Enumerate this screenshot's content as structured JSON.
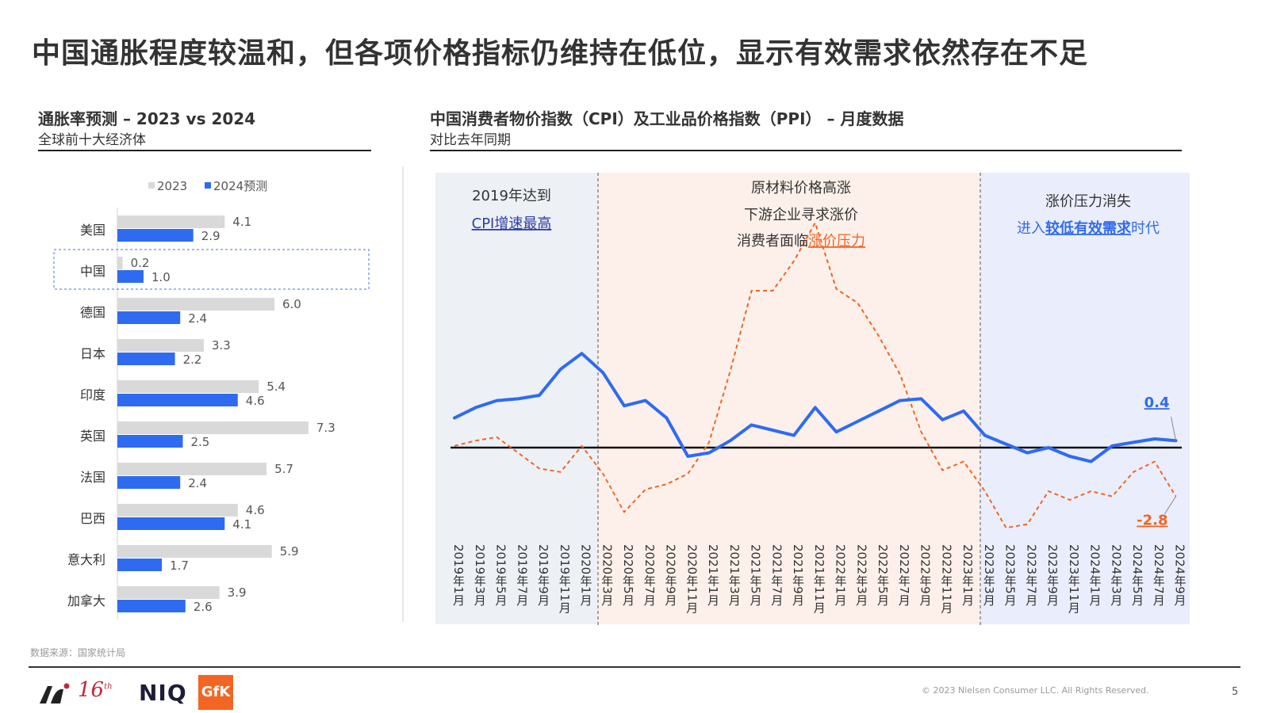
{
  "title": "中国通胀程度较温和，但各项价格指标仍维持在低位，显示有效需求依然存在不足",
  "left": {
    "title": "通胀率预测 – 2023 vs 2024",
    "subtitle": "全球前十大经济体"
  },
  "right": {
    "title": "中国消费者物价指数（CPI）及工业品价格指数（PPI） – 月度数据",
    "subtitle": "对比去年同期"
  },
  "annotations": {
    "a1_line1": "2019年达到",
    "a1_line2": "CPI增速最高",
    "a2_line1": "原材料价格高涨",
    "a2_line2": "下游企业寻求涨价",
    "a2_line3_prefix": "消费者面临",
    "a2_line3_highlight": "涨价压力",
    "a3_line1": "涨价压力消失",
    "a3_line2_prefix": "进入",
    "a3_line2_highlight": "较低有效需求",
    "a3_line2_suffix": "时代",
    "cpi_last_label": "0.4",
    "ppi_last_label": "-2.8"
  },
  "footer": {
    "source": "数据来源：国家统计局",
    "copyright": "© 2023 Nielsen Consumer LLC. All Rights Reserved.",
    "page": "5",
    "logo_16": "16",
    "logo_16_sup": "th",
    "logo_niq": "NIQ",
    "logo_gfk": "GfK"
  },
  "colors": {
    "bar2023": "#d9d9d9",
    "bar2024": "#2f6bf1",
    "cpi": "#2f6bf1",
    "ppi": "#f26522",
    "zone1": "#edf0f5",
    "zone2": "#fdf0ea",
    "zone3": "#eaedfb"
  },
  "chart_data": [
    {
      "type": "bar",
      "orientation": "horizontal",
      "categories": [
        "美国",
        "中国",
        "德国",
        "日本",
        "印度",
        "英国",
        "法国",
        "巴西",
        "意大利",
        "加拿大"
      ],
      "series": [
        {
          "name": "2023",
          "values": [
            4.1,
            0.2,
            6.0,
            3.3,
            5.4,
            7.3,
            5.7,
            4.6,
            5.9,
            3.9
          ]
        },
        {
          "name": "2024预测",
          "values": [
            2.9,
            1.0,
            2.4,
            2.2,
            4.6,
            2.5,
            2.4,
            4.1,
            1.7,
            2.6
          ]
        }
      ],
      "highlight_category": "中国",
      "legend": "top"
    },
    {
      "type": "line",
      "x_labels": [
        "2019年1月",
        "2019年3月",
        "2019年5月",
        "2019年7月",
        "2019年9月",
        "2019年11月",
        "2020年1月",
        "2020年3月",
        "2020年5月",
        "2020年7月",
        "2020年9月",
        "2020年11月",
        "2021年1月",
        "2021年3月",
        "2021年5月",
        "2021年7月",
        "2021年9月",
        "2021年11月",
        "2022年1月",
        "2022年3月",
        "2022年5月",
        "2022年7月",
        "2022年9月",
        "2022年11月",
        "2023年1月",
        "2023年3月",
        "2023年5月",
        "2023年7月",
        "2023年9月",
        "2023年11月",
        "2024年1月",
        "2024年3月",
        "2024年5月",
        "2024年7月",
        "2024年9月"
      ],
      "series": [
        {
          "name": "CPI",
          "values": [
            1.7,
            2.3,
            2.7,
            2.8,
            3.0,
            4.5,
            5.4,
            4.3,
            2.4,
            2.7,
            1.7,
            -0.5,
            -0.3,
            0.4,
            1.3,
            1.0,
            0.7,
            2.3,
            0.9,
            1.5,
            2.1,
            2.7,
            2.8,
            1.6,
            2.1,
            0.7,
            0.2,
            -0.3,
            0.0,
            -0.5,
            -0.8,
            0.1,
            0.3,
            0.5,
            0.4
          ]
        },
        {
          "name": "PPI",
          "values": [
            0.1,
            0.4,
            0.6,
            -0.3,
            -1.2,
            -1.4,
            0.1,
            -1.5,
            -3.7,
            -2.4,
            -2.1,
            -1.5,
            0.3,
            4.4,
            9.0,
            9.0,
            10.7,
            12.9,
            9.1,
            8.3,
            6.4,
            4.2,
            0.9,
            -1.3,
            -0.8,
            -2.5,
            -4.6,
            -4.4,
            -2.5,
            -3.0,
            -2.5,
            -2.8,
            -1.4,
            -0.8,
            -2.8
          ]
        }
      ],
      "zones": [
        {
          "from": "2019年1月",
          "to": "2020年1月"
        },
        {
          "from": "2020年3月",
          "to": "2023年1月"
        },
        {
          "from": "2023年3月",
          "to": "2024年9月"
        }
      ],
      "zero_line": true
    }
  ]
}
